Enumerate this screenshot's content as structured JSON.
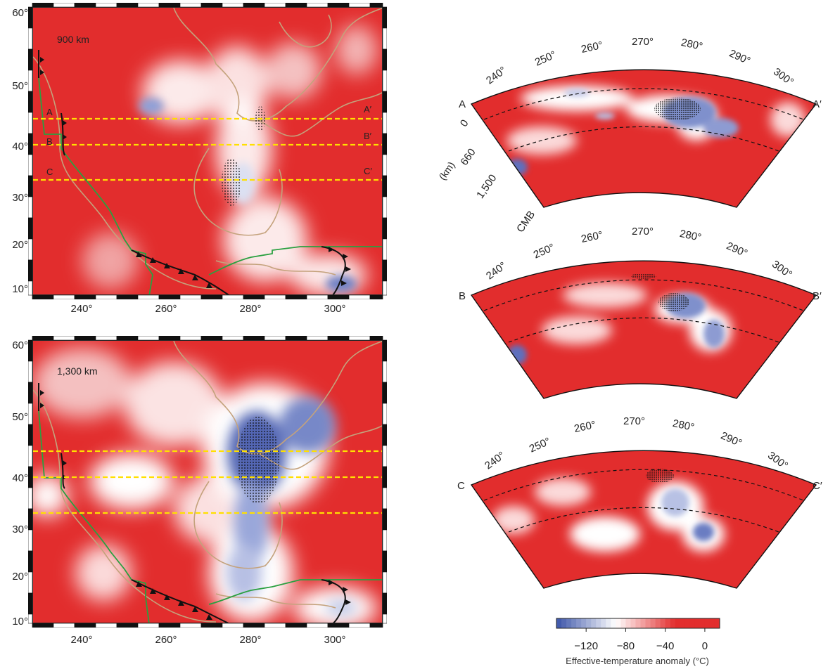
{
  "maps": [
    {
      "depth_label": "900 km",
      "y_ticks": [
        "60°",
        "50°",
        "40°",
        "30°",
        "20°",
        "10°"
      ],
      "x_ticks": [
        "240°",
        "260°",
        "280°",
        "300°"
      ],
      "profile_labels_left": [
        "A",
        "B",
        "C"
      ],
      "profile_labels_right": [
        "A′",
        "B′",
        "C′"
      ]
    },
    {
      "depth_label": "1,300 km",
      "y_ticks": [
        "60°",
        "50°",
        "40°",
        "30°",
        "20°",
        "10°"
      ],
      "x_ticks": [
        "240°",
        "260°",
        "280°",
        "300°"
      ]
    }
  ],
  "sections": [
    {
      "left": "A",
      "right": "A′",
      "lon_ticks": [
        "240°",
        "250°",
        "260°",
        "270°",
        "280°",
        "290°",
        "300°"
      ],
      "depth_ticks": [
        "0",
        "660",
        "1,500",
        "CMB"
      ],
      "depth_unit": "(km)"
    },
    {
      "left": "B",
      "right": "B′",
      "lon_ticks": [
        "240°",
        "250°",
        "260°",
        "270°",
        "280°",
        "290°",
        "300°"
      ]
    },
    {
      "left": "C",
      "right": "C′",
      "lon_ticks": [
        "240°",
        "250°",
        "260°",
        "270°",
        "280°",
        "290°",
        "300°"
      ]
    }
  ],
  "colorbar": {
    "ticks": [
      "−120",
      "−80",
      "−40",
      "0"
    ],
    "tick_values": [
      -120,
      -80,
      -40,
      0
    ],
    "range": [
      -150,
      15
    ],
    "caption": "Effective-temperature anomaly (°C)",
    "colors": {
      "cold": "#3b54a8",
      "neutral": "#ffffff",
      "hot": "#e22d2d"
    }
  },
  "colors": {
    "profile_line": "#ffe000",
    "coastline": "#c4a27c",
    "plate_boundary": "#2aa040",
    "trench": "#111111",
    "hot": "#e22d2d",
    "cold": "#3b54a8"
  }
}
